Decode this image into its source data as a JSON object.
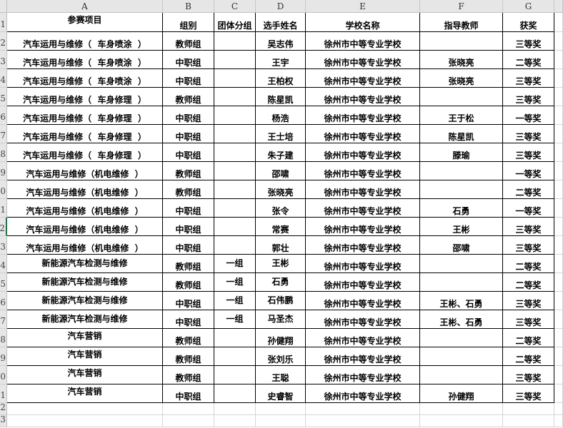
{
  "columns": [
    "A",
    "B",
    "C",
    "D",
    "E",
    "F",
    "G"
  ],
  "header": [
    "参赛项目",
    "组别",
    "团体分组",
    "选手姓名",
    "学校名称",
    "指导教师",
    "获奖"
  ],
  "rows": [
    [
      "汽车运用与维修（  车身喷涂  ）",
      "教师组",
      "",
      "吴志伟",
      "徐州市中等专业学校",
      "",
      "三等奖"
    ],
    [
      "汽车运用与维修（  车身喷涂  ）",
      "中职组",
      "",
      "王宇",
      "徐州市中等专业学校",
      "张晓亮",
      "二等奖"
    ],
    [
      "汽车运用与维修（  车身喷涂  ）",
      "中职组",
      "",
      "王柏权",
      "徐州市中等专业学校",
      "张晓亮",
      "三等奖"
    ],
    [
      "汽车运用与维修（  车身修理  ）",
      "教师组",
      "",
      "陈星凯",
      "徐州市中等专业学校",
      "",
      "三等奖"
    ],
    [
      "汽车运用与维修（  车身修理  ）",
      "中职组",
      "",
      "杨浩",
      "徐州市中等专业学校",
      "王于松",
      "一等奖"
    ],
    [
      "汽车运用与维修（  车身修理  ）",
      "中职组",
      "",
      "王士培",
      "徐州市中等专业学校",
      "陈星凯",
      "三等奖"
    ],
    [
      "汽车运用与维修（  车身修理  ）",
      "中职组",
      "",
      "朱子建",
      "徐州市中等专业学校",
      "滕瑜",
      "三等奖"
    ],
    [
      "汽车运用与维修（机电维修  ）",
      "教师组",
      "",
      "邵啸",
      "徐州市中等专业学校",
      "",
      "一等奖"
    ],
    [
      "汽车运用与维修（机电维修  ）",
      "教师组",
      "",
      "张晓亮",
      "徐州市中等专业学校",
      "",
      "二等奖"
    ],
    [
      "汽车运用与维修（机电维修  ）",
      "中职组",
      "",
      "张令",
      "徐州市中等专业学校",
      "石勇",
      "一等奖"
    ],
    [
      "汽车运用与维修（机电维修  ）",
      "中职组",
      "",
      "常赛",
      "徐州市中等专业学校",
      "王彬",
      "三等奖"
    ],
    [
      "汽车运用与维修（机电维修  ）",
      "中职组",
      "",
      "郭壮",
      "徐州市中等专业学校",
      "邵啸",
      "三等奖"
    ],
    [
      "新能源汽车检测与维修",
      "教师组",
      "一组",
      "王彬",
      "徐州市中等专业学校",
      "",
      "二等奖"
    ],
    [
      "新能源汽车检测与维修",
      "教师组",
      "一组",
      "石勇",
      "徐州市中等专业学校",
      "",
      "二等奖"
    ],
    [
      "新能源汽车检测与维修",
      "中职组",
      "一组",
      "石伟鹏",
      "徐州市中等专业学校",
      "王彬、石勇",
      "三等奖"
    ],
    [
      "新能源汽车检测与维修",
      "中职组",
      "一组",
      "马圣杰",
      "徐州市中等专业学校",
      "王彬、石勇",
      "三等奖"
    ],
    [
      "汽车营销",
      "教师组",
      "",
      "孙健翔",
      "徐州市中等专业学校",
      "",
      "二等奖"
    ],
    [
      "汽车营销",
      "教师组",
      "",
      "张刘乐",
      "徐州市中等专业学校",
      "",
      "二等奖"
    ],
    [
      "汽车营销",
      "教师组",
      "",
      "王聪",
      "徐州市中等专业学校",
      "",
      "三等奖"
    ],
    [
      "汽车营销",
      "中职组",
      "",
      "史睿智",
      "徐州市中等专业学校",
      "孙健翔",
      "三等奖"
    ]
  ],
  "row_numbers": [
    "1",
    "2",
    "3",
    "4",
    "5",
    "6",
    "7",
    "8",
    "9",
    "10",
    "11",
    "12",
    "13",
    "14",
    "15",
    "16",
    "17",
    "18",
    "19",
    "20",
    "21",
    "22",
    "23"
  ],
  "active_row": "12",
  "colors": {
    "header_bg": "#e6e6e6",
    "gridline": "#d4d4d4",
    "border": "#000000",
    "active": "#217346"
  }
}
